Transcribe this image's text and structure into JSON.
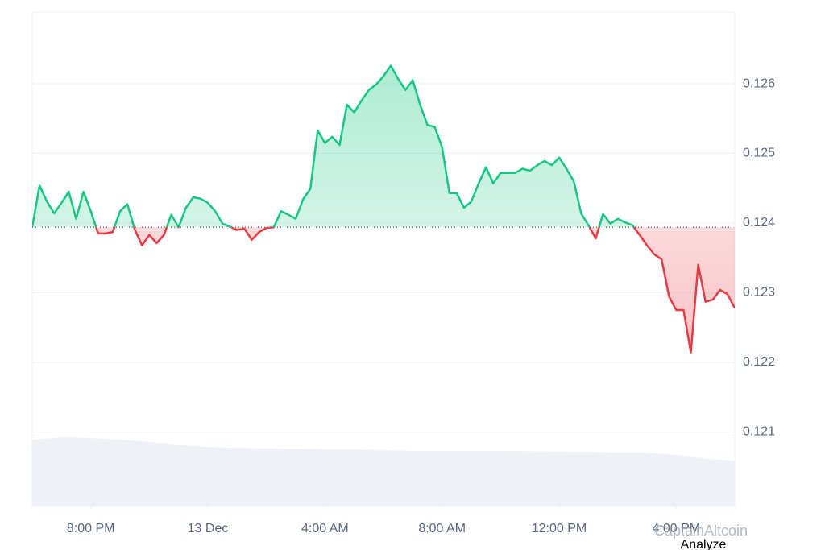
{
  "chart_data": {
    "type": "line",
    "x": [
      0,
      0.25,
      0.5,
      0.75,
      1,
      1.25,
      1.5,
      1.75,
      2,
      2.25,
      2.5,
      2.75,
      3,
      3.25,
      3.5,
      3.75,
      4,
      4.25,
      4.5,
      4.75,
      5,
      5.25,
      5.5,
      5.75,
      6,
      6.25,
      6.5,
      6.75,
      7,
      7.25,
      7.5,
      7.75,
      8,
      8.25,
      8.5,
      8.75,
      9,
      9.25,
      9.5,
      9.75,
      10,
      10.25,
      10.5,
      10.75,
      11,
      11.25,
      11.5,
      11.75,
      12,
      12.25,
      12.5,
      12.75,
      13,
      13.25,
      13.5,
      13.75,
      14,
      14.25,
      14.5,
      14.75,
      15,
      15.25,
      15.5,
      15.75,
      16,
      16.25,
      16.5,
      16.75,
      17,
      17.25,
      17.5,
      17.75,
      18,
      18.25,
      18.5,
      18.75,
      19,
      19.25,
      19.5,
      19.75,
      20,
      20.25,
      20.5,
      20.75,
      21,
      21.25,
      21.5,
      21.75,
      22,
      22.25,
      22.5,
      22.75,
      23,
      23.25,
      23.5,
      23.75,
      24
    ],
    "values": [
      0.12394,
      0.12454,
      0.12431,
      0.12414,
      0.12429,
      0.12445,
      0.12406,
      0.12445,
      0.12417,
      0.12385,
      0.12385,
      0.12387,
      0.12417,
      0.12427,
      0.12391,
      0.12368,
      0.12383,
      0.12371,
      0.12383,
      0.12412,
      0.12394,
      0.12422,
      0.12437,
      0.12435,
      0.12429,
      0.12417,
      0.12399,
      0.12395,
      0.1239,
      0.12392,
      0.12376,
      0.12387,
      0.12393,
      0.12394,
      0.12417,
      0.12412,
      0.12406,
      0.12434,
      0.12449,
      0.12533,
      0.12515,
      0.12524,
      0.12512,
      0.1257,
      0.12559,
      0.12576,
      0.12591,
      0.12599,
      0.12611,
      0.12626,
      0.12607,
      0.12591,
      0.12605,
      0.1257,
      0.12541,
      0.12538,
      0.12509,
      0.12443,
      0.12443,
      0.12422,
      0.12431,
      0.12457,
      0.1248,
      0.12457,
      0.12472,
      0.12472,
      0.12472,
      0.12478,
      0.12475,
      0.12483,
      0.12489,
      0.12483,
      0.12494,
      0.12478,
      0.1246,
      0.12414,
      0.12397,
      0.12378,
      0.12413,
      0.12399,
      0.12406,
      0.12401,
      0.12397,
      0.12383,
      0.12368,
      0.12355,
      0.12348,
      0.12295,
      0.12275,
      0.12275,
      0.12214,
      0.1234,
      0.12287,
      0.1229,
      0.12304,
      0.12298,
      0.12278
    ],
    "baseline": 0.12394,
    "colors": {
      "up": "#16c784",
      "down": "#ea3943"
    },
    "xlim": [
      0,
      24
    ],
    "xticks": [
      {
        "value": 2,
        "label": "8:00 PM"
      },
      {
        "value": 6,
        "label": "13 Dec"
      },
      {
        "value": 10,
        "label": "4:00 AM"
      },
      {
        "value": 14,
        "label": "8:00 AM"
      },
      {
        "value": 18,
        "label": "12:00 PM"
      },
      {
        "value": 22,
        "label": "4:00 PM"
      }
    ],
    "ylim": [
      0.11994,
      0.12703
    ],
    "yticks": [
      0.121,
      0.122,
      0.123,
      0.124,
      0.125,
      0.126
    ],
    "grid": true,
    "watermark": "CaptainAltcoin",
    "button": "Analyze"
  }
}
